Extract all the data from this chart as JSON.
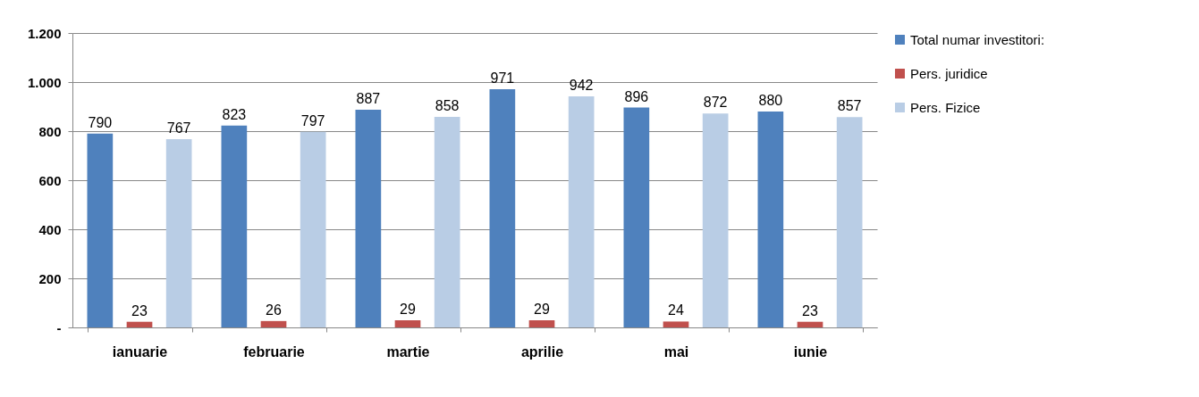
{
  "chart_data": {
    "type": "bar",
    "categories": [
      "ianuarie",
      "februarie",
      "martie",
      "aprilie",
      "mai",
      "iunie"
    ],
    "series": [
      {
        "name": "Total numar investitori:",
        "color": "#4f81bd",
        "values": [
          790,
          823,
          887,
          971,
          896,
          880
        ]
      },
      {
        "name": "Pers. juridice",
        "color": "#c0504d",
        "values": [
          23,
          26,
          29,
          29,
          24,
          23
        ]
      },
      {
        "name": "Pers. Fizice",
        "color": "#b9cde5",
        "values": [
          767,
          797,
          858,
          942,
          872,
          857
        ]
      }
    ],
    "ylim": [
      0,
      1200
    ],
    "yticks": [
      {
        "value": 0,
        "label": "-"
      },
      200,
      400,
      600,
      800,
      {
        "value": 1000,
        "label": "1.000"
      },
      {
        "value": 1200,
        "label": "1.200"
      }
    ],
    "grid": "y",
    "legend": "right",
    "data_labels": true
  }
}
